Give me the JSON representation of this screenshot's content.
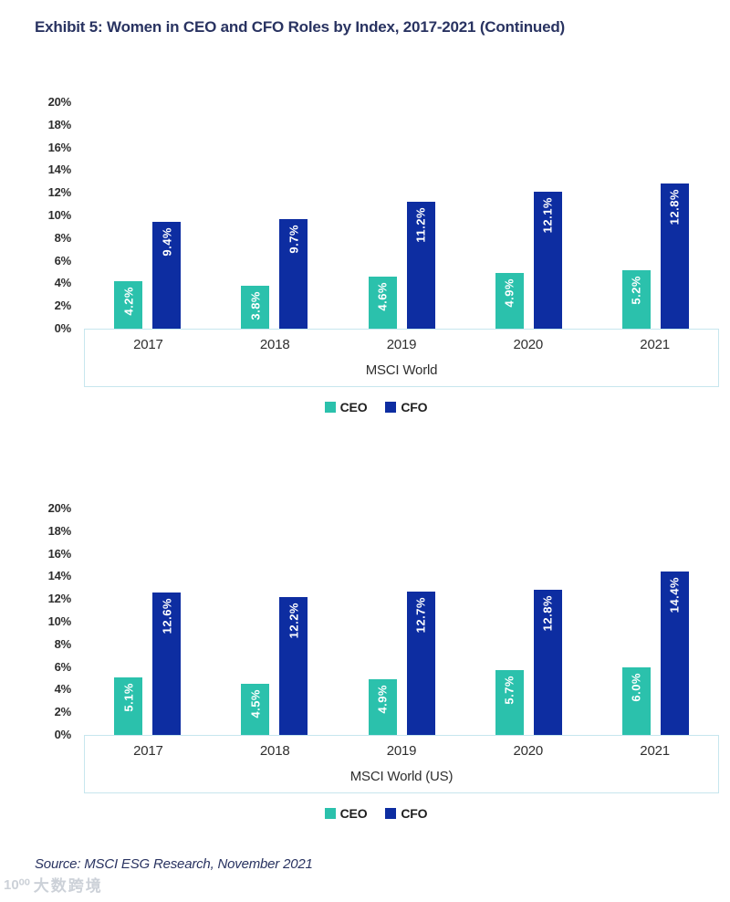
{
  "page": {
    "title": "Exhibit 5: Women in CEO and CFO Roles by Index, 2017-2021 (Continued)",
    "source": "Source: MSCI ESG Research, November 2021",
    "watermark_logo": "10⁰⁰",
    "watermark_text": "大数跨境"
  },
  "colors": {
    "ceo": "#2BC1AC",
    "cfo": "#0D2DA1",
    "title_text": "#293361",
    "axis_text": "#2F2F2F",
    "axis_box_border": "#C7E6EE",
    "bar_label": "#FFFFFF",
    "watermark": "#CCD1D8"
  },
  "chart_data": [
    {
      "type": "bar",
      "title": "MSCI World",
      "categories": [
        "2017",
        "2018",
        "2019",
        "2020",
        "2021"
      ],
      "series": [
        {
          "name": "CEO",
          "values": [
            4.2,
            3.8,
            4.6,
            4.9,
            5.2
          ],
          "labels": [
            "4.2%",
            "3.8%",
            "4.6%",
            "4.9%",
            "5.2%"
          ],
          "color_key": "ceo"
        },
        {
          "name": "CFO",
          "values": [
            9.4,
            9.7,
            11.2,
            12.1,
            12.8
          ],
          "labels": [
            "9.4%",
            "9.7%",
            "11.2%",
            "12.1%",
            "12.8%"
          ],
          "color_key": "cfo"
        }
      ],
      "xlabel": "MSCI World",
      "ylabel": "",
      "ylim": [
        0,
        20
      ],
      "ytick_step": 2,
      "ytick_suffix": "%",
      "grid": false,
      "legend_position": "bottom"
    },
    {
      "type": "bar",
      "title": "MSCI World (US)",
      "categories": [
        "2017",
        "2018",
        "2019",
        "2020",
        "2021"
      ],
      "series": [
        {
          "name": "CEO",
          "values": [
            5.1,
            4.5,
            4.9,
            5.7,
            6.0
          ],
          "labels": [
            "5.1%",
            "4.5%",
            "4.9%",
            "5.7%",
            "6.0%"
          ],
          "color_key": "ceo"
        },
        {
          "name": "CFO",
          "values": [
            12.6,
            12.2,
            12.7,
            12.8,
            14.4
          ],
          "labels": [
            "12.6%",
            "12.2%",
            "12.7%",
            "12.8%",
            "14.4%"
          ],
          "color_key": "cfo"
        }
      ],
      "xlabel": "MSCI World (US)",
      "ylabel": "",
      "ylim": [
        0,
        20
      ],
      "ytick_step": 2,
      "ytick_suffix": "%",
      "grid": false,
      "legend_position": "bottom"
    }
  ]
}
